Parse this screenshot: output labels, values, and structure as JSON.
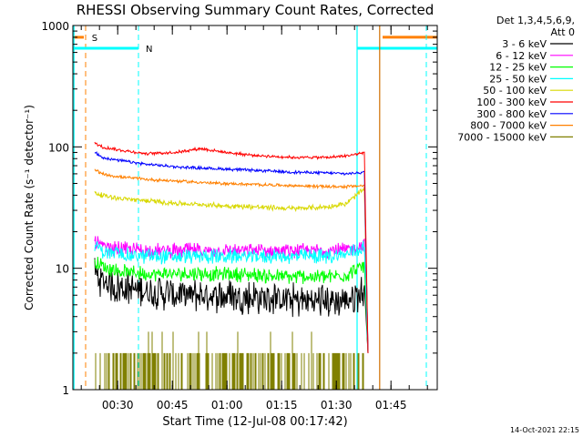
{
  "chart_data": {
    "type": "line",
    "title": "RHESSI Observing Summary Count Rates, Corrected",
    "xlabel": "Start Time (12-Jul-08 00:17:42)",
    "ylabel": "Corrected Count Rate (s⁻¹ detector⁻¹)",
    "x_unit": "minutes",
    "xlim": [
      0,
      100
    ],
    "ylim": [
      1,
      1000
    ],
    "y_scale": "log",
    "x_ticks": [
      {
        "t": 12.3,
        "label": "00:30"
      },
      {
        "t": 27.3,
        "label": "00:45"
      },
      {
        "t": 42.3,
        "label": "01:00"
      },
      {
        "t": 57.3,
        "label": "01:15"
      },
      {
        "t": 72.3,
        "label": "01:30"
      },
      {
        "t": 87.3,
        "label": "01:45"
      }
    ],
    "y_ticks": [
      {
        "v": 1,
        "label": "1"
      },
      {
        "v": 10,
        "label": "10"
      },
      {
        "v": 100,
        "label": "100"
      },
      {
        "v": 1000,
        "label": "1000"
      }
    ],
    "legend": {
      "header_line1": "Det 1,3,4,5,6,9,",
      "header_line2": "Att 0",
      "placement": "right"
    },
    "series": [
      {
        "name": "3 - 6 keV",
        "color": "#000000",
        "t": [
          6,
          8,
          12,
          20,
          30,
          40,
          50,
          60,
          70,
          75,
          80,
          81
        ],
        "values": [
          9,
          8,
          7,
          6.5,
          6,
          6,
          5.8,
          5.5,
          5.4,
          5.5,
          6.5,
          2
        ],
        "noise": 0.35
      },
      {
        "name": "6 - 12 keV",
        "color": "#ff00ff",
        "t": [
          6,
          8,
          12,
          20,
          30,
          40,
          50,
          60,
          70,
          75,
          80,
          81
        ],
        "values": [
          17,
          15,
          14.5,
          14,
          14,
          14,
          14,
          14,
          14,
          14,
          16,
          2
        ],
        "noise": 0.15
      },
      {
        "name": "12 - 25 keV",
        "color": "#00ff00",
        "t": [
          6,
          8,
          12,
          20,
          30,
          40,
          50,
          60,
          70,
          75,
          80,
          81
        ],
        "values": [
          11,
          10.5,
          9.5,
          9,
          9,
          9,
          8.8,
          8.5,
          8.5,
          8.8,
          10.5,
          2
        ],
        "noise": 0.15
      },
      {
        "name": "25 - 50 keV",
        "color": "#00ffff",
        "t": [
          6,
          8,
          12,
          20,
          30,
          40,
          50,
          60,
          70,
          75,
          80,
          81
        ],
        "values": [
          16,
          14,
          13,
          12.5,
          12.5,
          12.5,
          12.5,
          12.5,
          12.5,
          13,
          15,
          2
        ],
        "noise": 0.15
      },
      {
        "name": "50 - 100 keV",
        "color": "#d8d800",
        "t": [
          6,
          8,
          12,
          20,
          30,
          40,
          50,
          60,
          70,
          75,
          80,
          81
        ],
        "values": [
          42,
          40,
          38,
          36,
          34,
          33,
          32,
          31,
          32,
          34,
          45,
          2
        ],
        "noise": 0.05
      },
      {
        "name": "100 - 300 keV",
        "color": "#ff0000",
        "t": [
          6,
          8,
          12,
          20,
          28,
          35,
          42,
          50,
          60,
          70,
          75,
          80,
          81
        ],
        "values": [
          108,
          100,
          95,
          88,
          90,
          97,
          90,
          85,
          82,
          82,
          84,
          90,
          2
        ],
        "noise": 0.03
      },
      {
        "name": "300 - 800 keV",
        "color": "#0000ff",
        "t": [
          6,
          8,
          12,
          20,
          30,
          40,
          50,
          60,
          70,
          75,
          80,
          81
        ],
        "values": [
          90,
          82,
          78,
          72,
          68,
          66,
          64,
          62,
          61,
          60,
          62,
          2
        ],
        "noise": 0.03
      },
      {
        "name": "800 - 7000 keV",
        "color": "#ff8000",
        "t": [
          6,
          8,
          12,
          20,
          30,
          40,
          50,
          60,
          70,
          75,
          80,
          81
        ],
        "values": [
          65,
          60,
          57,
          54,
          52,
          50,
          49,
          48,
          47,
          47,
          48,
          2
        ],
        "noise": 0.03
      },
      {
        "name": "7000 - 15000 keV",
        "color": "#808000",
        "t": [
          6,
          80
        ],
        "values": [
          2,
          2
        ],
        "noise": 0,
        "bars": true
      }
    ],
    "attenuator": {
      "label": "S",
      "color": "#ff8000",
      "segments": [
        {
          "t0": 0,
          "t1": 3,
          "level": 800
        },
        {
          "t0": 85,
          "t1": 100,
          "level": 800
        }
      ],
      "dashed_x": [
        3.5,
        97
      ]
    },
    "night": {
      "label": "N",
      "color": "#00ffff",
      "segments": [
        {
          "t0": 0,
          "t1": 18,
          "level": 650
        },
        {
          "t0": 78,
          "t1": 100,
          "level": 650
        }
      ],
      "dashed_x": [
        18,
        97
      ],
      "solid_x": [
        78
      ]
    },
    "saa_line": {
      "t": 84.2,
      "color": "#d07000"
    }
  },
  "footer": {
    "timestamp": "14-Oct-2021 22:15"
  }
}
